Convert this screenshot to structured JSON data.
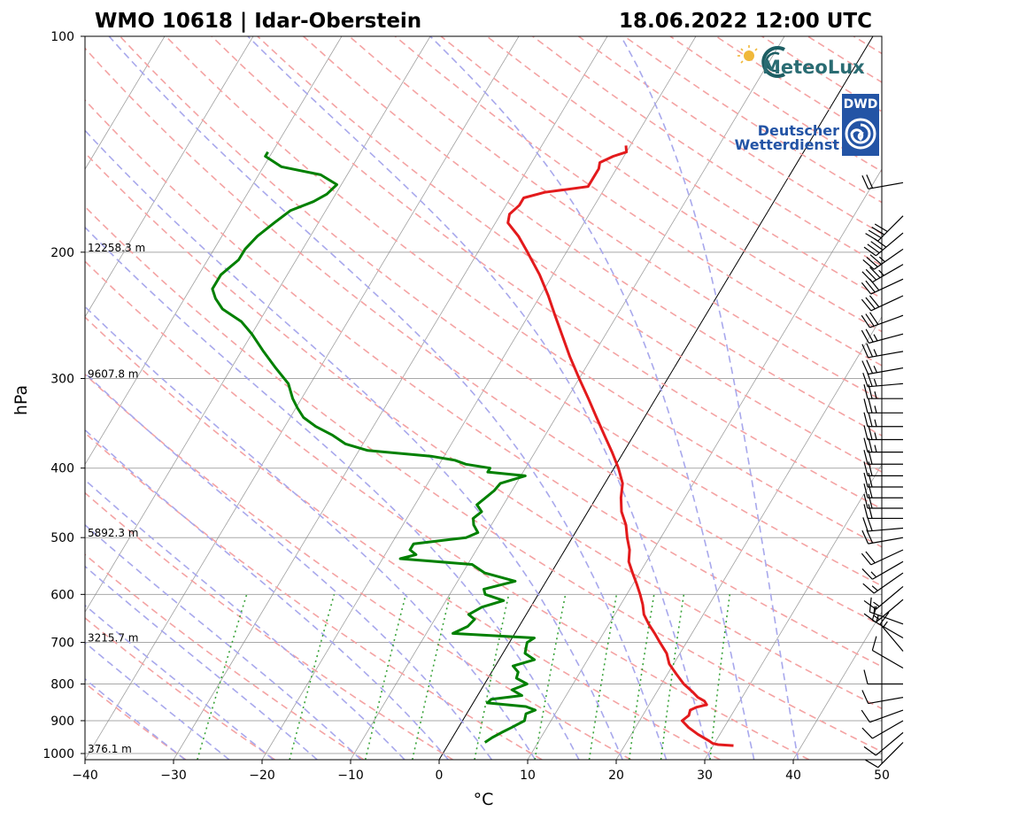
{
  "title_left": "WMO 10618 | Idar-Oberstein",
  "title_right": "18.06.2022 12:00 UTC",
  "logos": {
    "meteolux": "MeteoLux",
    "dwd_badge": "DWD",
    "dwd_line1": "Deutscher",
    "dwd_line2": "Wetterdienst"
  },
  "colors": {
    "temperature": "#e31a1c",
    "dewpoint": "#008000",
    "dry_adiabat": "#f4a3a3",
    "moist_adiabat": "#a8a8ec",
    "mixing_ratio": "#3aa33a",
    "isotherm": "#808080",
    "zero_isotherm": "#000000"
  },
  "chart_data": {
    "type": "line",
    "subtype": "skew-T log-p diagram",
    "xlabel": "°C",
    "ylabel": "hPa",
    "xlim": [
      -40,
      50
    ],
    "ylim": [
      1020,
      100
    ],
    "y_scale": "log",
    "x_ticks": [
      "−40",
      "−30",
      "−20",
      "−10",
      "0",
      "10",
      "20",
      "30",
      "40",
      "50"
    ],
    "y_ticks": [
      100,
      200,
      300,
      400,
      500,
      600,
      700,
      800,
      900,
      1000
    ],
    "grid": true,
    "height_labels": [
      {
        "p": 200,
        "text": "12258.3 m"
      },
      {
        "p": 300,
        "text": "9607.8 m"
      },
      {
        "p": 500,
        "text": "5892.3 m"
      },
      {
        "p": 700,
        "text": "3215.7 m"
      },
      {
        "p": 1000,
        "text": "376.1 m"
      }
    ],
    "series": [
      {
        "id": "temperature",
        "p": [
          975,
          972,
          968,
          960,
          940,
          920,
          900,
          885,
          870,
          862,
          855,
          845,
          835,
          820,
          800,
          775,
          750,
          725,
          700,
          680,
          660,
          640,
          620,
          600,
          580,
          560,
          540,
          520,
          500,
          480,
          460,
          440,
          420,
          400,
          380,
          360,
          340,
          320,
          300,
          280,
          260,
          245,
          230,
          215,
          200,
          190,
          182,
          177,
          172,
          168,
          165,
          162,
          157,
          153,
          150,
          147,
          145,
          142
        ],
        "t": [
          32.3,
          30.5,
          29.8,
          29.2,
          27.5,
          26.0,
          24.8,
          25.2,
          25.0,
          25.5,
          26.5,
          26.0,
          25.0,
          24.0,
          22.5,
          21.0,
          19.5,
          18.5,
          17.0,
          15.8,
          14.5,
          13.3,
          12.5,
          11.5,
          10.4,
          9.2,
          8.0,
          7.3,
          6.2,
          5.2,
          3.8,
          2.8,
          2.0,
          0.5,
          -1.3,
          -3.3,
          -5.4,
          -7.6,
          -10.0,
          -12.5,
          -15.0,
          -17.0,
          -19.1,
          -21.5,
          -24.4,
          -26.5,
          -28.6,
          -29.0,
          -28.5,
          -28.5,
          -26.5,
          -22.0,
          -22.0,
          -22.0,
          -22.3,
          -21.2,
          -20.0,
          -20.5
        ]
      },
      {
        "id": "dewpoint",
        "p": [
          965,
          950,
          935,
          920,
          900,
          880,
          870,
          860,
          850,
          840,
          830,
          815,
          800,
          785,
          770,
          755,
          740,
          725,
          710,
          700,
          690,
          680,
          665,
          650,
          640,
          625,
          612,
          600,
          590,
          575,
          560,
          545,
          535,
          528,
          520,
          510,
          500,
          492,
          480,
          470,
          460,
          450,
          440,
          430,
          420,
          410,
          405,
          400,
          395,
          390,
          385,
          378,
          370,
          360,
          350,
          340,
          330,
          320,
          305,
          290,
          275,
          260,
          250,
          240,
          232,
          225,
          215,
          205,
          198,
          190,
          182,
          175,
          170,
          166,
          161,
          156,
          152,
          147,
          145
        ],
        "t": [
          4.0,
          4.5,
          5.2,
          6.0,
          7.0,
          6.7,
          7.5,
          6.2,
          1.6,
          1.8,
          5.0,
          3.5,
          4.8,
          3.2,
          3.0,
          2.0,
          4.0,
          2.5,
          2.2,
          2.0,
          2.5,
          -7.0,
          -5.8,
          -5.5,
          -6.5,
          -5.5,
          -3.5,
          -6.0,
          -6.5,
          -3.5,
          -7.5,
          -9.5,
          -18.0,
          -16.5,
          -17.5,
          -17.5,
          -12.0,
          -11.0,
          -12.0,
          -12.5,
          -12.0,
          -13.0,
          -12.5,
          -12.0,
          -11.8,
          -9.5,
          -14.0,
          -14.0,
          -17.0,
          -18.5,
          -21.5,
          -29.0,
          -32.0,
          -34.0,
          -36.5,
          -38.5,
          -39.8,
          -41.0,
          -42.5,
          -45.0,
          -47.5,
          -50.0,
          -52.0,
          -55.0,
          -56.5,
          -57.5,
          -57.5,
          -56.5,
          -56.5,
          -56.0,
          -55.0,
          -54.0,
          -52.0,
          -51.0,
          -50.5,
          -53.0,
          -58.0,
          -60.5,
          -60.5
        ]
      }
    ],
    "wind_barbs": [
      {
        "p": 965,
        "dir": 225,
        "kt": 10
      },
      {
        "p": 935,
        "dir": 230,
        "kt": 10
      },
      {
        "p": 900,
        "dir": 240,
        "kt": 10
      },
      {
        "p": 870,
        "dir": 250,
        "kt": 10
      },
      {
        "p": 835,
        "dir": 260,
        "kt": 10
      },
      {
        "p": 800,
        "dir": 270,
        "kt": 10
      },
      {
        "p": 760,
        "dir": 300,
        "kt": 10
      },
      {
        "p": 720,
        "dir": 320,
        "kt": 15
      },
      {
        "p": 690,
        "dir": 300,
        "kt": 15
      },
      {
        "p": 660,
        "dir": 290,
        "kt": 15
      },
      {
        "p": 610,
        "dir": 230,
        "kt": 15
      },
      {
        "p": 585,
        "dir": 230,
        "kt": 15
      },
      {
        "p": 560,
        "dir": 235,
        "kt": 15
      },
      {
        "p": 540,
        "dir": 240,
        "kt": 15
      },
      {
        "p": 520,
        "dir": 245,
        "kt": 20
      },
      {
        "p": 500,
        "dir": 260,
        "kt": 20
      },
      {
        "p": 485,
        "dir": 265,
        "kt": 20
      },
      {
        "p": 470,
        "dir": 270,
        "kt": 20
      },
      {
        "p": 455,
        "dir": 270,
        "kt": 20
      },
      {
        "p": 440,
        "dir": 270,
        "kt": 20
      },
      {
        "p": 425,
        "dir": 270,
        "kt": 20
      },
      {
        "p": 410,
        "dir": 270,
        "kt": 20
      },
      {
        "p": 395,
        "dir": 270,
        "kt": 20
      },
      {
        "p": 380,
        "dir": 270,
        "kt": 25
      },
      {
        "p": 365,
        "dir": 270,
        "kt": 25
      },
      {
        "p": 350,
        "dir": 270,
        "kt": 25
      },
      {
        "p": 335,
        "dir": 270,
        "kt": 25
      },
      {
        "p": 320,
        "dir": 270,
        "kt": 25
      },
      {
        "p": 305,
        "dir": 265,
        "kt": 25
      },
      {
        "p": 290,
        "dir": 260,
        "kt": 25
      },
      {
        "p": 275,
        "dir": 260,
        "kt": 25
      },
      {
        "p": 260,
        "dir": 255,
        "kt": 25
      },
      {
        "p": 245,
        "dir": 250,
        "kt": 30
      },
      {
        "p": 230,
        "dir": 245,
        "kt": 30
      },
      {
        "p": 218,
        "dir": 245,
        "kt": 30
      },
      {
        "p": 208,
        "dir": 240,
        "kt": 35
      },
      {
        "p": 198,
        "dir": 235,
        "kt": 35
      },
      {
        "p": 188,
        "dir": 230,
        "kt": 40
      },
      {
        "p": 178,
        "dir": 225,
        "kt": 40
      },
      {
        "p": 160,
        "dir": 260,
        "kt": 20
      }
    ]
  }
}
